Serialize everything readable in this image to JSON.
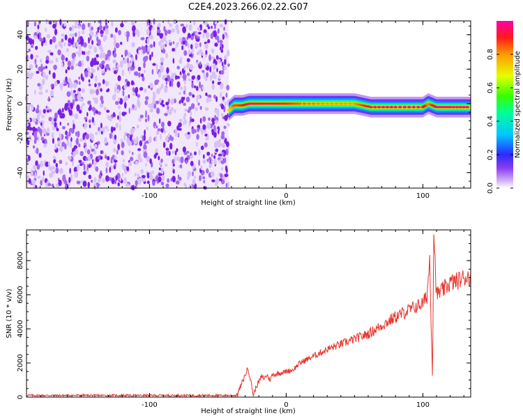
{
  "title": "C2E4.2023.266.02.22.G07",
  "chart_data": [
    {
      "type": "heatmap",
      "panel": "spectrogram",
      "xlabel": "Height of straight line (km)",
      "ylabel": "Frequency (Hz)",
      "xlim": [
        -190,
        135
      ],
      "ylim": [
        -49,
        48
      ],
      "xticks": [
        -100,
        0,
        100
      ],
      "xtick_labels": [
        "-100",
        "0",
        "100"
      ],
      "yticks": [
        -40,
        -20,
        0,
        20,
        40
      ],
      "ytick_labels": [
        "-40",
        "-20",
        "0",
        "20",
        "40"
      ],
      "noise_region_x": [
        -190,
        -42
      ],
      "signal_track": {
        "x": [
          -42,
          -38,
          -32,
          -27,
          -20,
          -10,
          0,
          10,
          30,
          50,
          62,
          80,
          100,
          104,
          110,
          120,
          135
        ],
        "y": [
          -4,
          -1,
          -1,
          0,
          0,
          0,
          0,
          0,
          0,
          0,
          -2,
          -2,
          -2,
          0,
          -2,
          -2,
          -2
        ],
        "peak_amplitude": [
          0.7,
          0.85,
          0.9,
          0.95,
          0.95,
          0.95,
          0.9,
          0.85,
          0.8,
          0.8,
          0.95,
          0.98,
          0.98,
          0.8,
          0.98,
          0.98,
          0.98
        ]
      },
      "colorbar": {
        "label": "Normalized spectral amplitude",
        "range": [
          0,
          1
        ],
        "ticks": [
          0,
          0.2,
          0.4,
          0.6,
          0.8
        ],
        "tick_labels": [
          "0.0",
          "0.2",
          "0.4",
          "0.6",
          "0.8"
        ]
      },
      "grid": false
    },
    {
      "type": "line",
      "panel": "snr",
      "xlabel": "Height of straight line (km)",
      "ylabel": "SNR (10 * v/v)",
      "xlim": [
        -190,
        135
      ],
      "ylim": [
        0,
        9800
      ],
      "xticks": [
        -100,
        0,
        100
      ],
      "xtick_labels": [
        "-100",
        "0",
        "100"
      ],
      "yticks": [
        0,
        2000,
        4000,
        6000,
        8000
      ],
      "ytick_labels": [
        "0",
        "2000",
        "4000",
        "6000",
        "8000"
      ],
      "series": [
        {
          "color": "#e8322a",
          "x": [
            -190,
            -150,
            -100,
            -50,
            -36,
            -32,
            -28,
            -26,
            -24,
            -22,
            -20,
            -18,
            -16,
            -14,
            -12,
            -10,
            -5,
            0,
            5,
            10,
            20,
            30,
            40,
            50,
            60,
            70,
            80,
            90,
            100,
            103,
            105,
            106,
            107,
            108,
            110,
            115,
            120,
            125,
            130,
            135
          ],
          "y": [
            100,
            100,
            100,
            100,
            100,
            900,
            1700,
            1000,
            100,
            600,
            900,
            1200,
            1100,
            1300,
            1000,
            1300,
            1400,
            1500,
            1600,
            2000,
            2400,
            2800,
            3100,
            3400,
            3700,
            4200,
            4700,
            5100,
            5500,
            5900,
            8100,
            4500,
            1300,
            9800,
            6000,
            6300,
            6700,
            6800,
            7000,
            7100
          ]
        }
      ],
      "grid": false
    }
  ]
}
